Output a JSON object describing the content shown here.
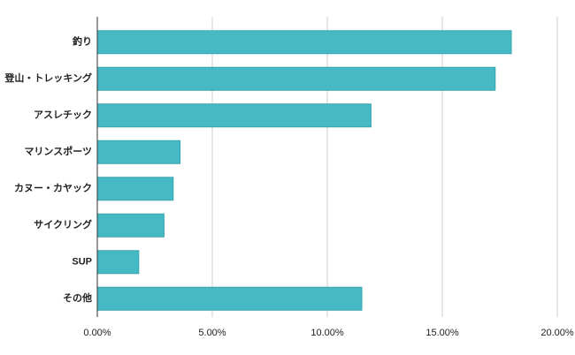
{
  "chart_data": {
    "type": "hbar",
    "categories": [
      "釣り",
      "登山・トレッキング",
      "アスレチック",
      "マリンスポーツ",
      "カヌー・カヤック",
      "サイクリング",
      "SUP",
      "その他"
    ],
    "values": [
      18.0,
      17.3,
      11.9,
      3.6,
      3.3,
      2.9,
      1.8,
      11.5
    ],
    "color": "#45bac5",
    "xlim": [
      0,
      20
    ],
    "xticks": [
      {
        "value": 0,
        "label": "0.00%"
      },
      {
        "value": 5,
        "label": "5.00%"
      },
      {
        "value": 10,
        "label": "10.00%"
      },
      {
        "value": 15,
        "label": "15.00%"
      },
      {
        "value": 20,
        "label": "20.00%"
      }
    ],
    "grid": true
  }
}
